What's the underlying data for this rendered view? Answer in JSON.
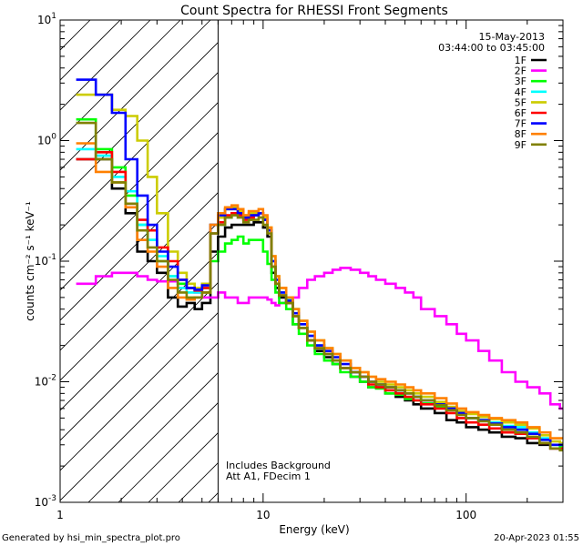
{
  "chart_data": {
    "type": "line",
    "title": "Count Spectra for RHESSI Front Segments",
    "xlabel": "Energy (keV)",
    "ylabel": "counts cm⁻² s⁻¹ keV⁻¹",
    "xscale": "log",
    "yscale": "log",
    "xlim": [
      1,
      300
    ],
    "ylim": [
      0.001,
      10
    ],
    "x_ticks": [
      {
        "value": 1,
        "label": "1"
      },
      {
        "value": 10,
        "label": "10"
      },
      {
        "value": 100,
        "label": "100"
      }
    ],
    "y_ticks": [
      {
        "value": 0.001,
        "base": "10",
        "exp": "-3"
      },
      {
        "value": 0.01,
        "base": "10",
        "exp": "-2"
      },
      {
        "value": 0.1,
        "base": "10",
        "exp": "-1"
      },
      {
        "value": 1,
        "base": "10",
        "exp": "0"
      },
      {
        "value": 10,
        "base": "10",
        "exp": "1"
      }
    ],
    "shaded_region": {
      "x_start": 1,
      "x_end": 6,
      "pattern": "diagonal-hatch",
      "meaning": "excluded low energies"
    },
    "vertical_line_x": 6,
    "legend_position": "top-right",
    "date": "15-May-2013",
    "time_range": "03:44:00 to 03:45:00",
    "annotations": [
      "Includes Background",
      "Att A1, FDecim 1"
    ],
    "energies_keV": [
      1.2,
      1.5,
      1.8,
      2.1,
      2.4,
      2.7,
      3.0,
      3.4,
      3.8,
      4.2,
      4.6,
      5.0,
      5.5,
      6.0,
      6.5,
      7.0,
      7.5,
      8.0,
      8.5,
      9.0,
      9.5,
      10.0,
      10.5,
      11.0,
      11.5,
      12.0,
      13.0,
      14.0,
      15.0,
      16.5,
      18.0,
      20.0,
      22.0,
      24.0,
      27.0,
      30.0,
      33.0,
      36.0,
      40.0,
      45.0,
      50.0,
      55.0,
      60.0,
      70.0,
      80.0,
      90.0,
      100.0,
      115.0,
      130.0,
      150.0,
      175.0,
      200.0,
      230.0,
      260.0,
      290.0
    ],
    "series": [
      {
        "name": "1F",
        "color": "#000000",
        "values": [
          0.7,
          0.7,
          0.4,
          0.25,
          0.12,
          0.1,
          0.08,
          0.05,
          0.042,
          0.045,
          0.04,
          0.045,
          0.12,
          0.16,
          0.19,
          0.2,
          0.2,
          0.2,
          0.2,
          0.21,
          0.21,
          0.19,
          0.16,
          0.08,
          0.06,
          0.05,
          0.045,
          0.03,
          0.028,
          0.022,
          0.018,
          0.016,
          0.014,
          0.013,
          0.011,
          0.01,
          0.009,
          0.009,
          0.008,
          0.0075,
          0.007,
          0.0065,
          0.006,
          0.0055,
          0.0048,
          0.0046,
          0.0042,
          0.004,
          0.0038,
          0.0035,
          0.0034,
          0.0031,
          0.003,
          0.0028,
          0.0028
        ]
      },
      {
        "name": "2F",
        "color": "#ff00ff",
        "values": [
          0.065,
          0.075,
          0.08,
          0.08,
          0.075,
          0.07,
          0.068,
          0.068,
          0.065,
          0.06,
          0.055,
          0.05,
          0.05,
          0.055,
          0.05,
          0.05,
          0.045,
          0.045,
          0.05,
          0.05,
          0.05,
          0.05,
          0.048,
          0.045,
          0.043,
          0.045,
          0.048,
          0.05,
          0.06,
          0.07,
          0.075,
          0.08,
          0.085,
          0.088,
          0.085,
          0.08,
          0.075,
          0.07,
          0.065,
          0.06,
          0.055,
          0.05,
          0.04,
          0.035,
          0.03,
          0.025,
          0.022,
          0.018,
          0.015,
          0.012,
          0.01,
          0.009,
          0.008,
          0.0065,
          0.006
        ]
      },
      {
        "name": "3F",
        "color": "#00ff00",
        "values": [
          1.5,
          0.85,
          0.6,
          0.35,
          0.2,
          0.15,
          0.1,
          0.075,
          0.065,
          0.06,
          0.058,
          0.06,
          0.1,
          0.12,
          0.14,
          0.15,
          0.16,
          0.14,
          0.15,
          0.15,
          0.15,
          0.12,
          0.095,
          0.07,
          0.055,
          0.045,
          0.04,
          0.03,
          0.025,
          0.02,
          0.017,
          0.015,
          0.014,
          0.012,
          0.011,
          0.01,
          0.009,
          0.0088,
          0.008,
          0.0078,
          0.0072,
          0.007,
          0.0066,
          0.0062,
          0.0058,
          0.0054,
          0.005,
          0.0048,
          0.0045,
          0.0042,
          0.004,
          0.0037,
          0.0033,
          0.003,
          0.0029
        ]
      },
      {
        "name": "4F",
        "color": "#00ffff",
        "values": [
          0.85,
          0.75,
          0.5,
          0.38,
          0.2,
          0.15,
          0.11,
          0.075,
          0.06,
          0.055,
          0.055,
          0.06,
          0.17,
          0.2,
          0.23,
          0.25,
          0.25,
          0.23,
          0.24,
          0.24,
          0.25,
          0.22,
          0.18,
          0.1,
          0.07,
          0.055,
          0.048,
          0.04,
          0.03,
          0.024,
          0.02,
          0.017,
          0.015,
          0.013,
          0.012,
          0.011,
          0.01,
          0.0095,
          0.009,
          0.0085,
          0.008,
          0.0075,
          0.007,
          0.0065,
          0.006,
          0.0055,
          0.005,
          0.0048,
          0.0046,
          0.0043,
          0.0042,
          0.0038,
          0.0034,
          0.003,
          0.003
        ]
      },
      {
        "name": "5F",
        "color": "#cccc00",
        "values": [
          2.4,
          2.4,
          1.8,
          1.6,
          1.0,
          0.5,
          0.25,
          0.12,
          0.08,
          0.065,
          0.06,
          0.065,
          0.2,
          0.23,
          0.27,
          0.28,
          0.26,
          0.24,
          0.25,
          0.25,
          0.25,
          0.23,
          0.19,
          0.11,
          0.075,
          0.06,
          0.05,
          0.04,
          0.032,
          0.026,
          0.022,
          0.019,
          0.017,
          0.015,
          0.013,
          0.012,
          0.011,
          0.01,
          0.0095,
          0.009,
          0.0085,
          0.008,
          0.0075,
          0.0068,
          0.0062,
          0.0057,
          0.0054,
          0.0051,
          0.0049,
          0.0046,
          0.0044,
          0.0041,
          0.0036,
          0.0032,
          0.0031
        ]
      },
      {
        "name": "6F",
        "color": "#ff0000",
        "values": [
          0.7,
          0.8,
          0.55,
          0.3,
          0.22,
          0.18,
          0.13,
          0.1,
          0.07,
          0.06,
          0.057,
          0.06,
          0.17,
          0.21,
          0.24,
          0.25,
          0.24,
          0.22,
          0.23,
          0.24,
          0.25,
          0.22,
          0.18,
          0.09,
          0.065,
          0.052,
          0.045,
          0.035,
          0.028,
          0.022,
          0.019,
          0.017,
          0.015,
          0.013,
          0.012,
          0.011,
          0.0095,
          0.009,
          0.0085,
          0.008,
          0.0075,
          0.007,
          0.0065,
          0.006,
          0.0055,
          0.005,
          0.0046,
          0.0044,
          0.0041,
          0.0038,
          0.0037,
          0.0034,
          0.0031,
          0.0028,
          0.0028
        ]
      },
      {
        "name": "7F",
        "color": "#0000ff",
        "values": [
          3.2,
          2.4,
          1.7,
          0.7,
          0.35,
          0.2,
          0.12,
          0.09,
          0.07,
          0.06,
          0.058,
          0.063,
          0.2,
          0.24,
          0.27,
          0.27,
          0.25,
          0.23,
          0.24,
          0.24,
          0.25,
          0.22,
          0.18,
          0.1,
          0.07,
          0.055,
          0.047,
          0.037,
          0.03,
          0.024,
          0.02,
          0.018,
          0.016,
          0.014,
          0.012,
          0.011,
          0.01,
          0.0095,
          0.009,
          0.0085,
          0.008,
          0.0075,
          0.007,
          0.0065,
          0.006,
          0.0055,
          0.005,
          0.0048,
          0.0045,
          0.0042,
          0.004,
          0.0037,
          0.0033,
          0.003,
          0.003
        ]
      },
      {
        "name": "8F",
        "color": "#ff8000",
        "values": [
          0.95,
          0.55,
          0.45,
          0.28,
          0.15,
          0.12,
          0.09,
          0.06,
          0.05,
          0.048,
          0.05,
          0.055,
          0.2,
          0.25,
          0.28,
          0.29,
          0.27,
          0.24,
          0.26,
          0.26,
          0.27,
          0.24,
          0.19,
          0.11,
          0.075,
          0.06,
          0.05,
          0.04,
          0.032,
          0.026,
          0.022,
          0.019,
          0.017,
          0.015,
          0.013,
          0.012,
          0.011,
          0.0105,
          0.01,
          0.0095,
          0.009,
          0.0085,
          0.008,
          0.0073,
          0.0066,
          0.006,
          0.0056,
          0.0053,
          0.005,
          0.0048,
          0.0046,
          0.0042,
          0.0038,
          0.0034,
          0.0034
        ]
      },
      {
        "name": "9F",
        "color": "#808000",
        "values": [
          1.4,
          0.7,
          0.45,
          0.3,
          0.18,
          0.13,
          0.1,
          0.07,
          0.055,
          0.05,
          0.05,
          0.055,
          0.17,
          0.2,
          0.23,
          0.24,
          0.23,
          0.21,
          0.22,
          0.22,
          0.23,
          0.2,
          0.17,
          0.09,
          0.065,
          0.052,
          0.045,
          0.035,
          0.028,
          0.022,
          0.019,
          0.017,
          0.015,
          0.013,
          0.012,
          0.011,
          0.01,
          0.0095,
          0.009,
          0.0085,
          0.008,
          0.0075,
          0.007,
          0.0064,
          0.0058,
          0.0053,
          0.005,
          0.0047,
          0.0044,
          0.004,
          0.0038,
          0.0035,
          0.0031,
          0.0028,
          0.0027
        ]
      }
    ]
  },
  "footer": {
    "generated_by": "Generated by hsi_min_spectra_plot.pro",
    "date": "20-Apr-2023 01:55"
  }
}
